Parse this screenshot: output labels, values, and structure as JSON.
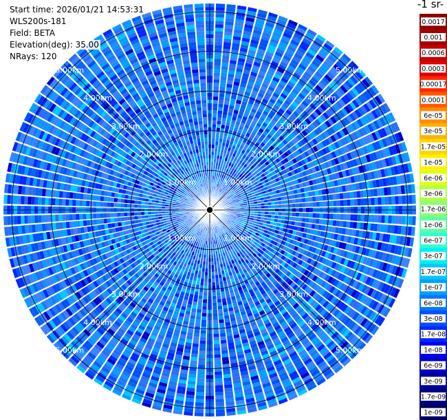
{
  "header": {
    "start_time": "Start time: 2026/01/21 14:53:31",
    "instrument": "WLS200s-181",
    "field": "Field: BETA",
    "elevation": "Elevation(deg): 35.00",
    "nrays": "NRays: 120"
  },
  "colorbar": {
    "title_fragment": "-1 sr-",
    "labels": [
      "0.0017",
      "0.001",
      "0.0006",
      "0.0003",
      "0.00017",
      "0.0001",
      "6e-05",
      "3e-05",
      "1.7e-05",
      "1e-05",
      "6e-06",
      "3e-06",
      "1.7e-06",
      "1e-06",
      "6e-07",
      "3e-07",
      "1.7e-07",
      "1e-07",
      "6e-08",
      "3e-08",
      "1.7e-08",
      "1e-08",
      "6e-09",
      "3e-09",
      "1.7e-09",
      "1e-09"
    ],
    "colors": [
      "#8b0000",
      "#a50000",
      "#c40000",
      "#e00000",
      "#ff2800",
      "#ff5a00",
      "#ff8c00",
      "#ffb000",
      "#ffd400",
      "#fff000",
      "#e0ff1a",
      "#b4ff4a",
      "#88ff78",
      "#5cffa4",
      "#30ffd0",
      "#00f0f0",
      "#00c8ff",
      "#00a0ff",
      "#0078ff",
      "#0050ff",
      "#0028ff",
      "#0000f0",
      "#0000c8",
      "#0000a0",
      "#000080",
      "#000060"
    ]
  },
  "chart_data": {
    "type": "heatmap",
    "subtype": "polar-ppi",
    "nrays": 120,
    "max_range_km": 5.0,
    "range_rings_km": [
      1.0,
      2.0,
      3.0,
      4.0,
      5.0
    ],
    "ring_labels": [
      "1.00km",
      "2.00km",
      "3.00km",
      "4.00km",
      "5.00km"
    ],
    "field": "BETA",
    "dominant_value_range": [
      "1e-08",
      "6e-08"
    ],
    "grid": true
  }
}
